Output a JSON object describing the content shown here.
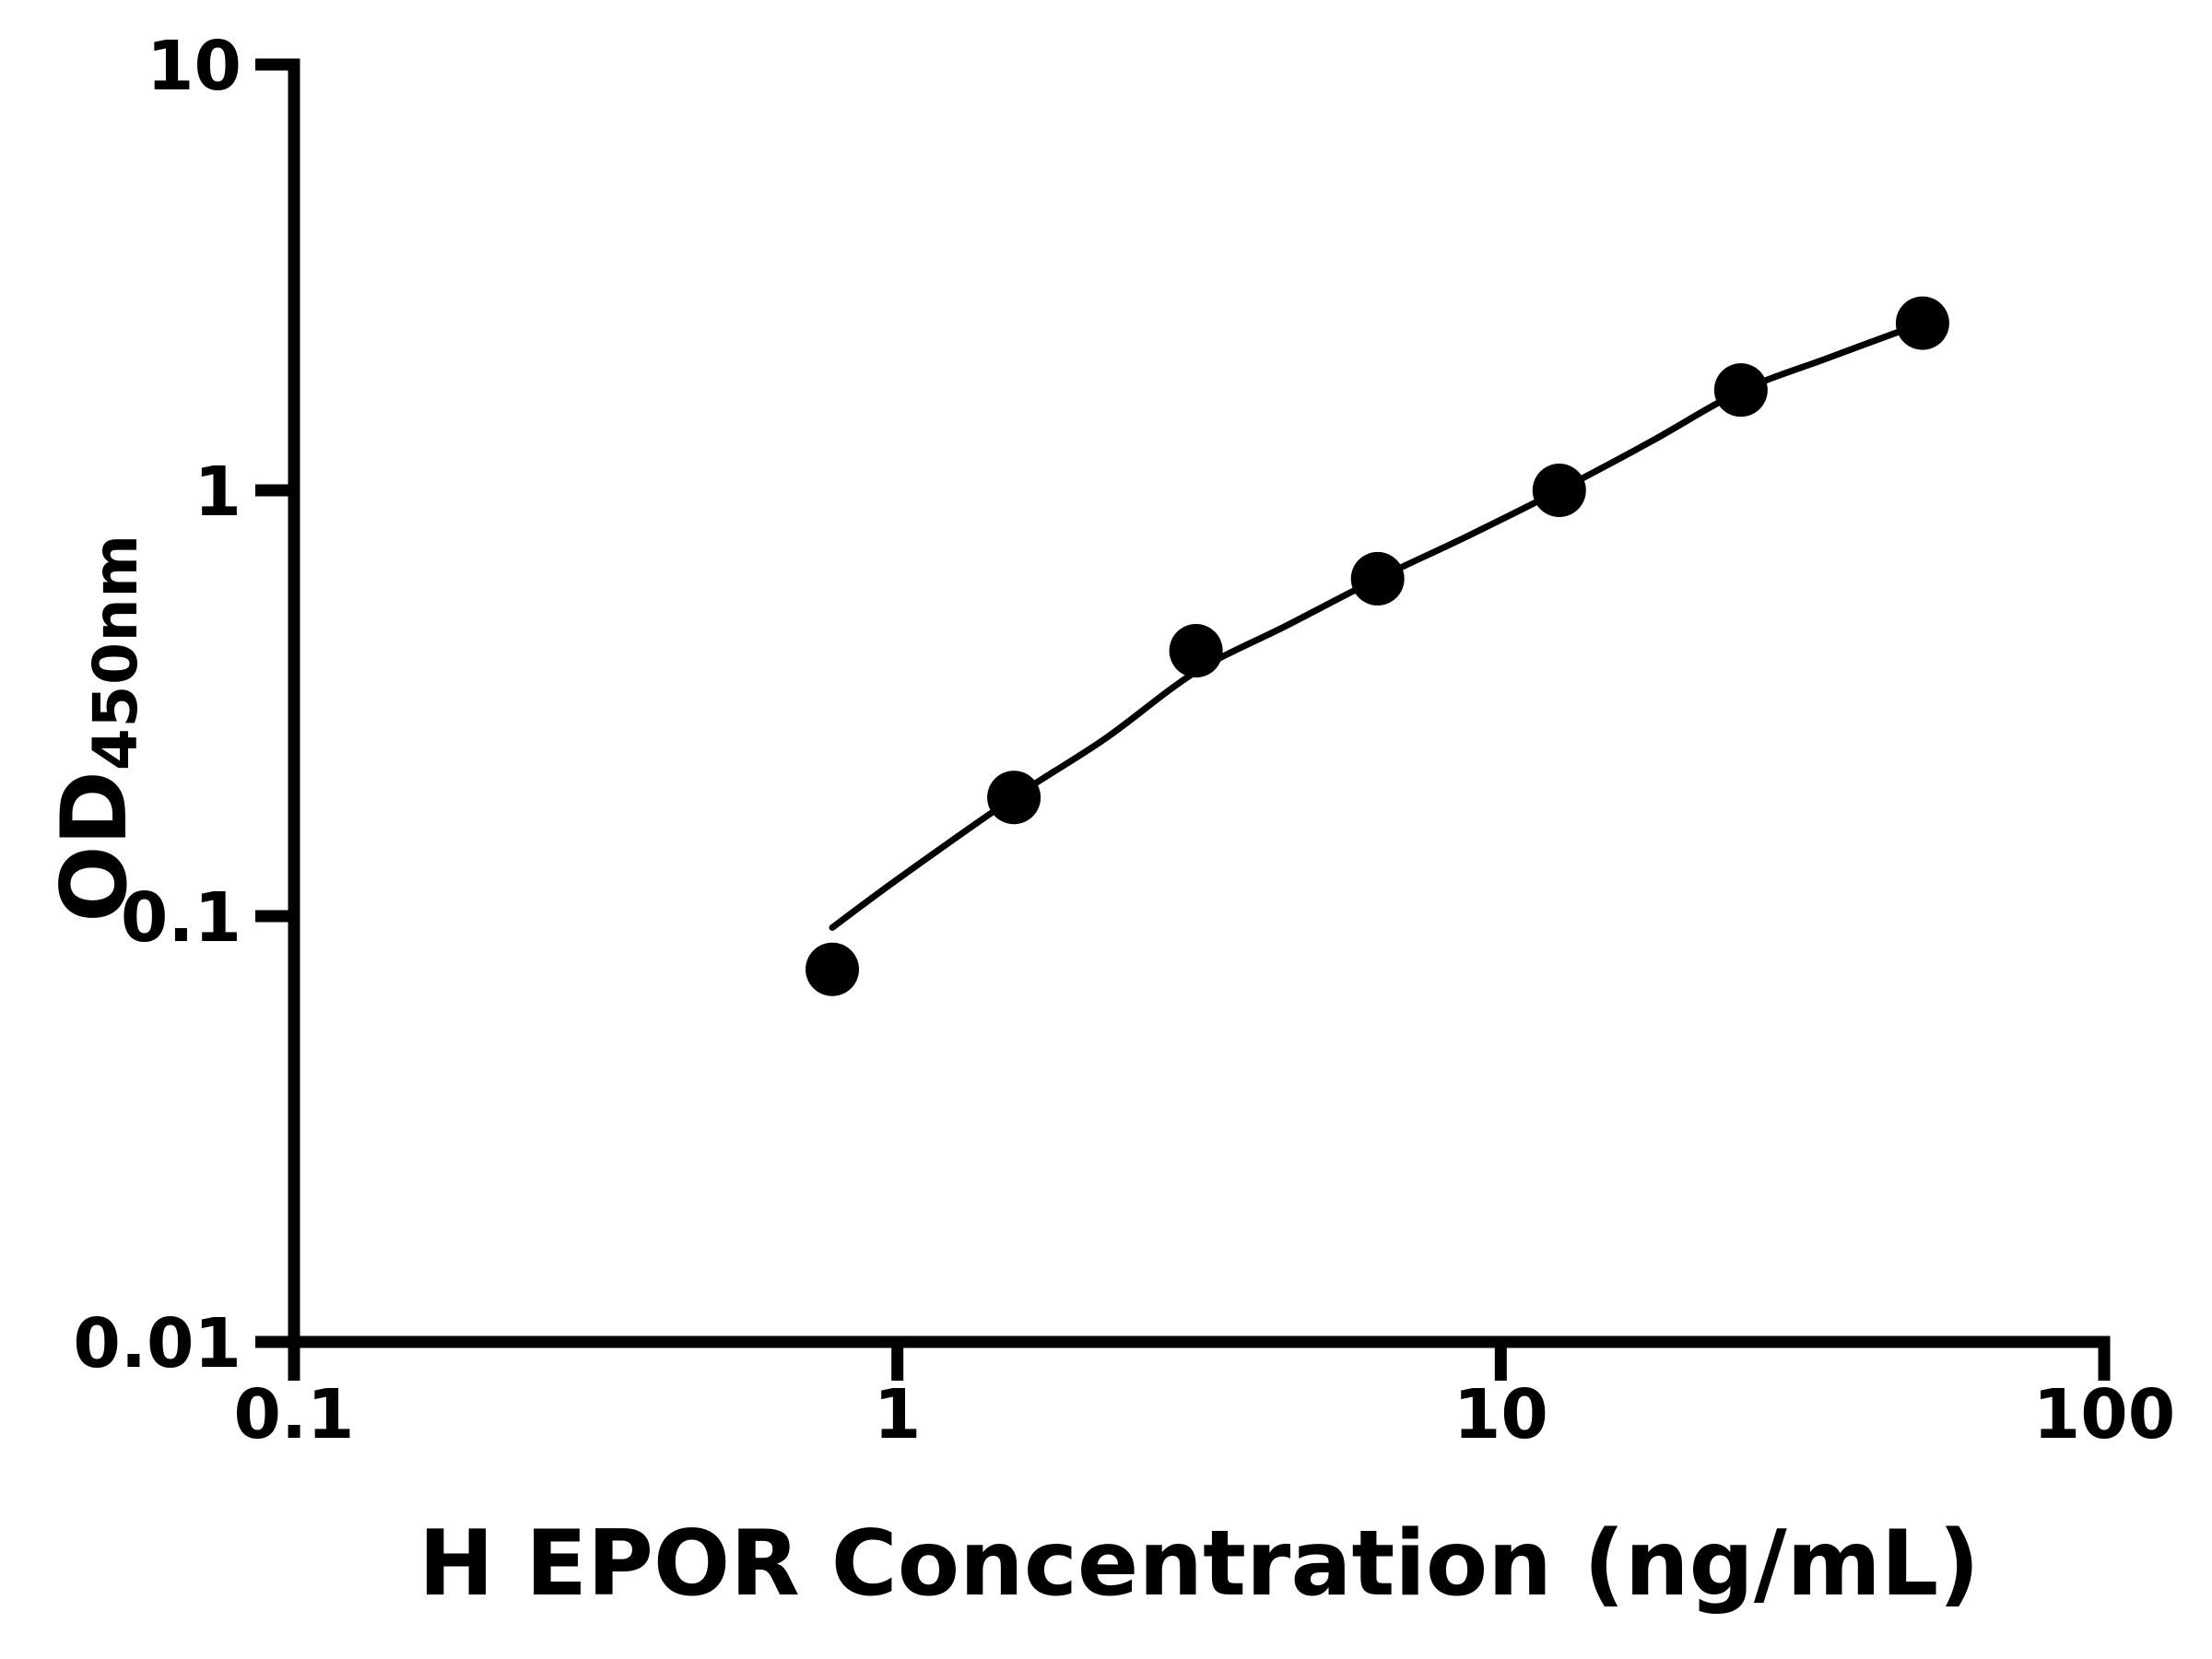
{
  "figure": {
    "background": "#ffffff",
    "ink_color": "#000000"
  },
  "chart_data": {
    "type": "scatter",
    "title": "",
    "xlabel": "H EPOR Concentration (ng/mL)",
    "ylabel_main": "OD",
    "ylabel_sub": "450nm",
    "x_scale": "log",
    "y_scale": "log",
    "xlim": [
      0.1,
      100
    ],
    "ylim": [
      0.01,
      10
    ],
    "grid": false,
    "legend": false,
    "x_ticks": [
      {
        "value": 0.1,
        "label": "0.1"
      },
      {
        "value": 1,
        "label": "1"
      },
      {
        "value": 10,
        "label": "10"
      },
      {
        "value": 100,
        "label": "100"
      }
    ],
    "y_ticks": [
      {
        "value": 10,
        "label": "10"
      },
      {
        "value": 1,
        "label": "1"
      },
      {
        "value": 0.1,
        "label": "0.1"
      },
      {
        "value": 0.01,
        "label": "0.01"
      }
    ],
    "series": [
      {
        "name": "standard-points",
        "kind": "scatter",
        "marker": "filled-circle",
        "marker_radius_px": 29,
        "color": "#000000",
        "points": [
          {
            "x": 0.78,
            "y": 0.075
          },
          {
            "x": 1.56,
            "y": 0.19
          },
          {
            "x": 3.125,
            "y": 0.42
          },
          {
            "x": 6.25,
            "y": 0.62
          },
          {
            "x": 12.5,
            "y": 1.0
          },
          {
            "x": 25,
            "y": 1.72
          },
          {
            "x": 50,
            "y": 2.47
          }
        ]
      },
      {
        "name": "fitted-curve",
        "kind": "line",
        "stroke_width_px": 7,
        "color": "#000000",
        "points": [
          {
            "x": 0.78,
            "y": 0.094
          },
          {
            "x": 1.0,
            "y": 0.122
          },
          {
            "x": 1.56,
            "y": 0.19
          },
          {
            "x": 2.2,
            "y": 0.26
          },
          {
            "x": 3.125,
            "y": 0.375
          },
          {
            "x": 4.4,
            "y": 0.48
          },
          {
            "x": 6.25,
            "y": 0.62
          },
          {
            "x": 8.8,
            "y": 0.78
          },
          {
            "x": 12.5,
            "y": 1.0
          },
          {
            "x": 17.7,
            "y": 1.3
          },
          {
            "x": 25,
            "y": 1.71
          },
          {
            "x": 35,
            "y": 2.05
          },
          {
            "x": 50,
            "y": 2.47
          }
        ]
      }
    ]
  }
}
